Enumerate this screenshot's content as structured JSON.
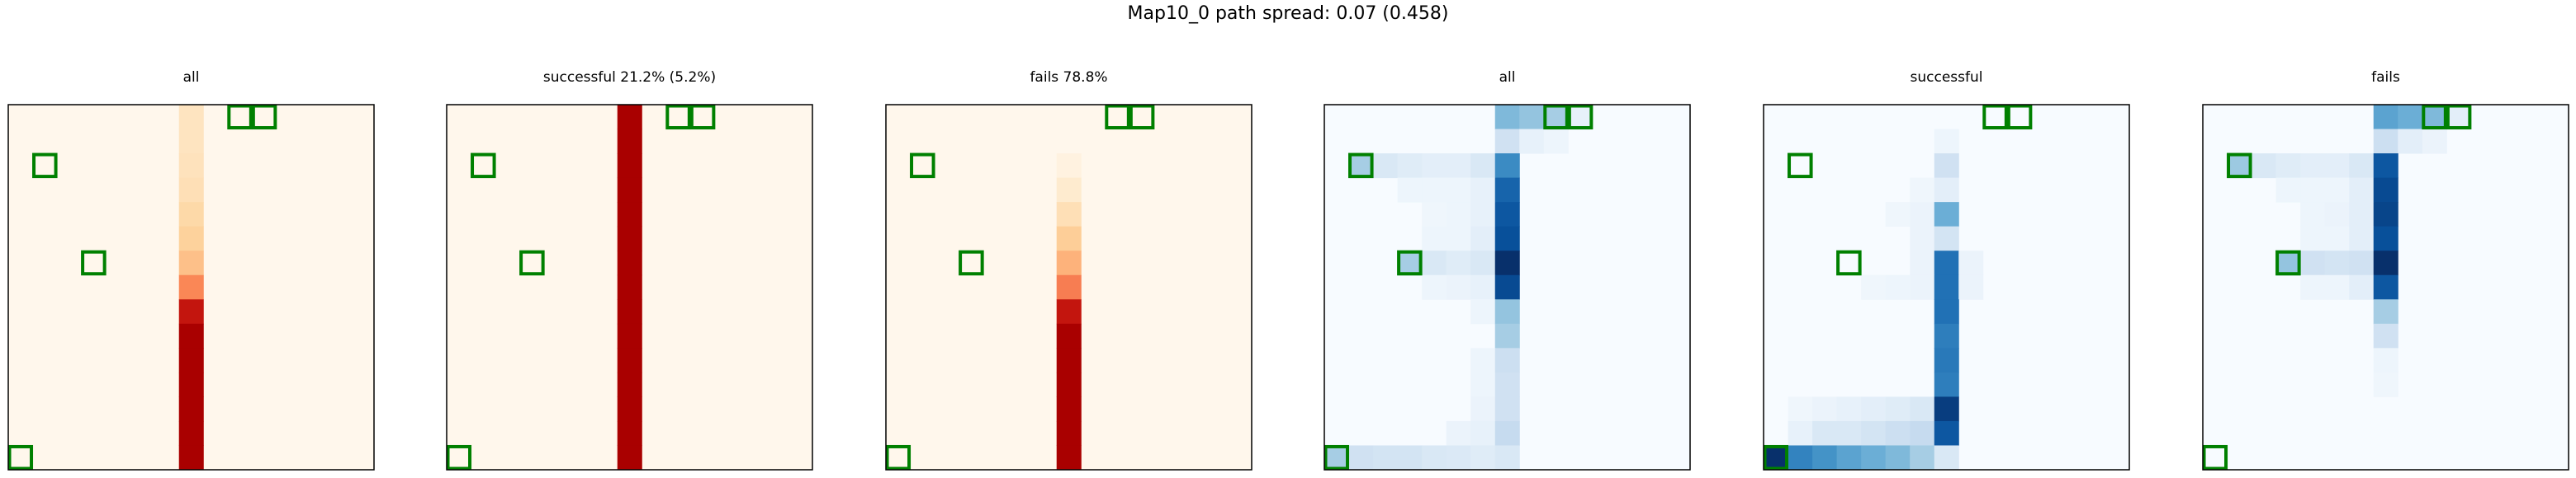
{
  "title": "Map10_0 path spread: 0.07 (0.458)",
  "chart_data": [
    {
      "type": "heatmap",
      "title": "all",
      "colormap": "OrRd",
      "grid_size": [
        15,
        15
      ],
      "grid": false,
      "axis_ticks": false,
      "cells": [
        [
          7,
          0,
          0.15
        ],
        [
          7,
          1,
          0.15
        ],
        [
          7,
          2,
          0.16
        ],
        [
          7,
          3,
          0.18
        ],
        [
          7,
          4,
          0.22
        ],
        [
          7,
          5,
          0.26
        ],
        [
          7,
          6,
          0.35
        ],
        [
          7,
          7,
          0.52
        ],
        [
          7,
          8,
          0.82
        ],
        [
          7,
          9,
          0.9
        ],
        [
          7,
          10,
          0.9
        ],
        [
          7,
          11,
          0.9
        ],
        [
          7,
          12,
          0.9
        ],
        [
          7,
          13,
          0.9
        ],
        [
          7,
          14,
          0.9
        ]
      ]
    },
    {
      "type": "heatmap",
      "title": "successful 21.2% (5.2%)",
      "colormap": "OrRd",
      "grid_size": [
        15,
        15
      ],
      "grid": false,
      "axis_ticks": false,
      "cells": [
        [
          7,
          0,
          0.9
        ],
        [
          7,
          1,
          0.9
        ],
        [
          7,
          2,
          0.9
        ],
        [
          7,
          3,
          0.9
        ],
        [
          7,
          4,
          0.9
        ],
        [
          7,
          5,
          0.9
        ],
        [
          7,
          6,
          0.9
        ],
        [
          7,
          7,
          0.9
        ],
        [
          7,
          8,
          0.9
        ],
        [
          7,
          9,
          0.9
        ],
        [
          7,
          10,
          0.9
        ],
        [
          7,
          11,
          0.9
        ],
        [
          7,
          12,
          0.9
        ],
        [
          7,
          13,
          0.9
        ],
        [
          7,
          14,
          0.9
        ]
      ]
    },
    {
      "type": "heatmap",
      "title": "fails 78.8%",
      "colormap": "OrRd",
      "grid_size": [
        15,
        15
      ],
      "grid": false,
      "axis_ticks": false,
      "cells": [
        [
          7,
          2,
          0.04
        ],
        [
          7,
          3,
          0.1
        ],
        [
          7,
          4,
          0.18
        ],
        [
          7,
          5,
          0.28
        ],
        [
          7,
          6,
          0.4
        ],
        [
          7,
          7,
          0.55
        ],
        [
          7,
          8,
          0.82
        ],
        [
          7,
          9,
          0.9
        ],
        [
          7,
          10,
          0.9
        ],
        [
          7,
          11,
          0.9
        ],
        [
          7,
          12,
          0.9
        ],
        [
          7,
          13,
          0.9
        ],
        [
          7,
          14,
          0.9
        ]
      ]
    },
    {
      "type": "heatmap",
      "title": "all",
      "colormap": "Blues",
      "grid_size": [
        15,
        15
      ],
      "grid": false,
      "axis_ticks": false,
      "cells": [
        [
          7,
          0,
          0.45
        ],
        [
          8,
          0,
          0.4
        ],
        [
          9,
          0,
          0.35
        ],
        [
          10,
          0,
          0.08
        ],
        [
          7,
          1,
          0.2
        ],
        [
          8,
          1,
          0.08
        ],
        [
          9,
          1,
          0.05
        ],
        [
          1,
          2,
          0.35
        ],
        [
          2,
          2,
          0.15
        ],
        [
          3,
          2,
          0.12
        ],
        [
          4,
          2,
          0.1
        ],
        [
          5,
          2,
          0.1
        ],
        [
          6,
          2,
          0.15
        ],
        [
          7,
          2,
          0.65
        ],
        [
          3,
          3,
          0.05
        ],
        [
          4,
          3,
          0.05
        ],
        [
          5,
          3,
          0.05
        ],
        [
          6,
          3,
          0.08
        ],
        [
          7,
          3,
          0.8
        ],
        [
          4,
          4,
          0.04
        ],
        [
          5,
          4,
          0.05
        ],
        [
          6,
          4,
          0.08
        ],
        [
          7,
          4,
          0.85
        ],
        [
          4,
          5,
          0.05
        ],
        [
          5,
          5,
          0.05
        ],
        [
          6,
          5,
          0.1
        ],
        [
          7,
          5,
          0.88
        ],
        [
          3,
          6,
          0.35
        ],
        [
          4,
          6,
          0.15
        ],
        [
          5,
          6,
          0.12
        ],
        [
          6,
          6,
          0.15
        ],
        [
          7,
          6,
          1.0
        ],
        [
          4,
          7,
          0.05
        ],
        [
          5,
          7,
          0.06
        ],
        [
          6,
          7,
          0.08
        ],
        [
          7,
          7,
          0.9
        ],
        [
          6,
          8,
          0.05
        ],
        [
          7,
          8,
          0.4
        ],
        [
          7,
          9,
          0.35
        ],
        [
          6,
          10,
          0.05
        ],
        [
          7,
          10,
          0.22
        ],
        [
          6,
          11,
          0.05
        ],
        [
          7,
          11,
          0.2
        ],
        [
          6,
          12,
          0.06
        ],
        [
          7,
          12,
          0.2
        ],
        [
          5,
          13,
          0.06
        ],
        [
          6,
          13,
          0.08
        ],
        [
          7,
          13,
          0.25
        ],
        [
          0,
          14,
          0.35
        ],
        [
          1,
          14,
          0.2
        ],
        [
          2,
          14,
          0.18
        ],
        [
          3,
          14,
          0.18
        ],
        [
          4,
          14,
          0.15
        ],
        [
          5,
          14,
          0.14
        ],
        [
          6,
          14,
          0.12
        ],
        [
          7,
          14,
          0.15
        ]
      ]
    },
    {
      "type": "heatmap",
      "title": "successful",
      "colormap": "Blues",
      "grid_size": [
        15,
        15
      ],
      "grid": false,
      "axis_ticks": false,
      "cells": [
        [
          7,
          1,
          0.05
        ],
        [
          7,
          2,
          0.2
        ],
        [
          6,
          3,
          0.04
        ],
        [
          7,
          3,
          0.1
        ],
        [
          5,
          4,
          0.04
        ],
        [
          6,
          4,
          0.06
        ],
        [
          7,
          4,
          0.5
        ],
        [
          6,
          5,
          0.06
        ],
        [
          7,
          5,
          0.18
        ],
        [
          6,
          6,
          0.06
        ],
        [
          7,
          6,
          0.75
        ],
        [
          8,
          6,
          0.06
        ],
        [
          4,
          7,
          0.04
        ],
        [
          5,
          7,
          0.05
        ],
        [
          6,
          7,
          0.06
        ],
        [
          7,
          7,
          0.75
        ],
        [
          8,
          7,
          0.06
        ],
        [
          7,
          8,
          0.75
        ],
        [
          7,
          9,
          0.7
        ],
        [
          7,
          10,
          0.72
        ],
        [
          7,
          11,
          0.7
        ],
        [
          1,
          12,
          0.04
        ],
        [
          2,
          12,
          0.06
        ],
        [
          3,
          12,
          0.08
        ],
        [
          4,
          12,
          0.1
        ],
        [
          5,
          12,
          0.12
        ],
        [
          6,
          12,
          0.15
        ],
        [
          7,
          12,
          0.95
        ],
        [
          1,
          13,
          0.08
        ],
        [
          2,
          13,
          0.15
        ],
        [
          3,
          13,
          0.15
        ],
        [
          4,
          13,
          0.18
        ],
        [
          5,
          13,
          0.22
        ],
        [
          6,
          13,
          0.25
        ],
        [
          7,
          13,
          0.85
        ],
        [
          0,
          14,
          1.0
        ],
        [
          1,
          14,
          0.68
        ],
        [
          2,
          14,
          0.62
        ],
        [
          3,
          14,
          0.55
        ],
        [
          4,
          14,
          0.5
        ],
        [
          5,
          14,
          0.45
        ],
        [
          6,
          14,
          0.35
        ],
        [
          7,
          14,
          0.15
        ]
      ]
    },
    {
      "type": "heatmap",
      "title": "fails",
      "colormap": "Blues",
      "grid_size": [
        15,
        15
      ],
      "grid": false,
      "axis_ticks": false,
      "cells": [
        [
          7,
          0,
          0.55
        ],
        [
          8,
          0,
          0.5
        ],
        [
          9,
          0,
          0.45
        ],
        [
          10,
          0,
          0.1
        ],
        [
          7,
          1,
          0.22
        ],
        [
          8,
          1,
          0.1
        ],
        [
          9,
          1,
          0.06
        ],
        [
          1,
          2,
          0.38
        ],
        [
          2,
          2,
          0.15
        ],
        [
          3,
          2,
          0.12
        ],
        [
          4,
          2,
          0.1
        ],
        [
          5,
          2,
          0.1
        ],
        [
          6,
          2,
          0.15
        ],
        [
          7,
          2,
          0.85
        ],
        [
          3,
          3,
          0.05
        ],
        [
          4,
          3,
          0.05
        ],
        [
          5,
          3,
          0.05
        ],
        [
          6,
          3,
          0.1
        ],
        [
          7,
          3,
          0.9
        ],
        [
          4,
          4,
          0.05
        ],
        [
          5,
          4,
          0.06
        ],
        [
          6,
          4,
          0.1
        ],
        [
          7,
          4,
          0.92
        ],
        [
          4,
          5,
          0.05
        ],
        [
          5,
          5,
          0.05
        ],
        [
          6,
          5,
          0.1
        ],
        [
          7,
          5,
          0.88
        ],
        [
          3,
          6,
          0.4
        ],
        [
          4,
          6,
          0.2
        ],
        [
          5,
          6,
          0.18
        ],
        [
          6,
          6,
          0.2
        ],
        [
          7,
          6,
          1.0
        ],
        [
          4,
          7,
          0.05
        ],
        [
          5,
          7,
          0.05
        ],
        [
          6,
          7,
          0.1
        ],
        [
          7,
          7,
          0.85
        ],
        [
          7,
          8,
          0.35
        ],
        [
          7,
          9,
          0.2
        ],
        [
          7,
          10,
          0.05
        ],
        [
          7,
          11,
          0.04
        ]
      ]
    }
  ],
  "markers": {
    "color": "#008000",
    "cells": [
      [
        9,
        0
      ],
      [
        10,
        0
      ],
      [
        1,
        2
      ],
      [
        3,
        6
      ],
      [
        0,
        14
      ]
    ]
  }
}
